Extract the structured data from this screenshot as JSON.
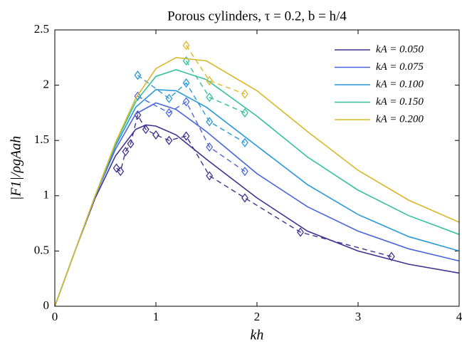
{
  "chart_data": {
    "type": "line",
    "title": "Porous cylinders, τ = 0.2, b = h/4",
    "xlabel": "kh",
    "ylabel": "|F1|/ρgAah",
    "xlim": [
      0,
      4
    ],
    "ylim": [
      0,
      2.5
    ],
    "xticks": [
      0,
      1,
      2,
      3,
      4
    ],
    "yticks": [
      0,
      0.5,
      1,
      1.5,
      2,
      2.5
    ],
    "grid": false,
    "legend": "upper right",
    "series": [
      {
        "name": "kA = 0.050",
        "color": "#3f3290",
        "x": [
          0,
          0.2,
          0.4,
          0.6,
          0.8,
          0.9,
          1.0,
          1.2,
          1.5,
          2,
          2.5,
          3,
          3.5,
          4
        ],
        "values": [
          0,
          0.5,
          0.98,
          1.36,
          1.6,
          1.64,
          1.63,
          1.55,
          1.33,
          0.98,
          0.68,
          0.5,
          0.38,
          0.3
        ],
        "measured": {
          "x": [
            0.61,
            0.65,
            0.7,
            0.75,
            0.82,
            0.9,
            1.0,
            1.13,
            1.3,
            1.53,
            1.88,
            2.43,
            3.33
          ],
          "values": [
            1.25,
            1.22,
            1.4,
            1.47,
            1.73,
            1.6,
            1.55,
            1.5,
            1.54,
            1.18,
            0.98,
            0.67,
            0.45
          ]
        }
      },
      {
        "name": "kA = 0.075",
        "color": "#4a66dc",
        "x": [
          0,
          0.2,
          0.4,
          0.6,
          0.8,
          1.0,
          1.2,
          1.5,
          2,
          2.5,
          3,
          3.5,
          4
        ],
        "values": [
          0,
          0.5,
          1.0,
          1.42,
          1.74,
          1.84,
          1.78,
          1.58,
          1.2,
          0.9,
          0.68,
          0.52,
          0.41
        ],
        "measured": {
          "x": [
            0.82,
            1.13,
            1.3,
            1.53,
            1.88
          ],
          "values": [
            1.9,
            1.75,
            1.85,
            1.44,
            1.22
          ]
        }
      },
      {
        "name": "kA = 0.100",
        "color": "#2898d8",
        "x": [
          0,
          0.2,
          0.4,
          0.6,
          0.8,
          1.0,
          1.2,
          1.5,
          2,
          2.5,
          3,
          3.5,
          4
        ],
        "values": [
          0,
          0.5,
          1.0,
          1.45,
          1.8,
          1.96,
          1.95,
          1.8,
          1.45,
          1.1,
          0.83,
          0.63,
          0.5
        ],
        "measured": {
          "x": [
            0.82,
            1.13,
            1.3,
            1.53,
            1.88
          ],
          "values": [
            2.09,
            1.88,
            2.02,
            1.67,
            1.48
          ]
        }
      },
      {
        "name": "kA = 0.150",
        "color": "#33c09a",
        "x": [
          0,
          0.2,
          0.4,
          0.6,
          0.8,
          1.0,
          1.2,
          1.5,
          2,
          2.5,
          3,
          3.5,
          4
        ],
        "values": [
          0,
          0.5,
          1.0,
          1.47,
          1.85,
          2.08,
          2.14,
          2.05,
          1.72,
          1.35,
          1.05,
          0.82,
          0.65
        ],
        "measured": {
          "x": [
            1.3,
            1.53,
            1.88
          ],
          "values": [
            2.22,
            1.89,
            1.75
          ]
        }
      },
      {
        "name": "kA = 0.200",
        "color": "#d8b82a",
        "x": [
          0,
          0.2,
          0.4,
          0.6,
          0.8,
          1.0,
          1.2,
          1.5,
          2,
          2.5,
          3,
          3.5,
          4
        ],
        "values": [
          0,
          0.5,
          1.0,
          1.48,
          1.88,
          2.15,
          2.25,
          2.22,
          1.95,
          1.58,
          1.23,
          0.96,
          0.76
        ],
        "measured": {
          "x": [
            1.3,
            1.53,
            1.88
          ],
          "values": [
            2.36,
            2.04,
            1.92
          ]
        }
      }
    ]
  }
}
